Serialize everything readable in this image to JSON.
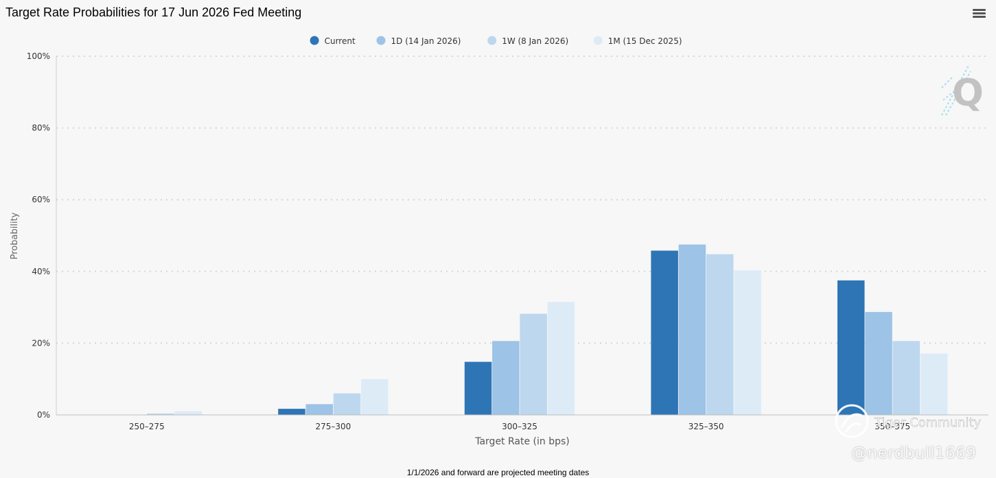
{
  "page": {
    "title": "Target Rate Probabilities for 17 Jun 2026 Fed Meeting",
    "footnote": "1/1/2026 and forward are projected meeting dates",
    "menu_icon": "hamburger-menu-icon"
  },
  "watermark": {
    "community": "Tiger Community",
    "handle": "@nerdbull1669",
    "logo_letter": "Q"
  },
  "chart_data": {
    "type": "bar",
    "title": "Target Rate Probabilities for 17 Jun 2026 Fed Meeting",
    "xlabel": "Target Rate (in bps)",
    "ylabel": "Probability",
    "categories": [
      "250-275",
      "275-300",
      "300-325",
      "325-350",
      "350-375"
    ],
    "ylim": [
      0,
      100
    ],
    "yticks": [
      0,
      20,
      40,
      60,
      80,
      100
    ],
    "ytick_suffix": "%",
    "grid": true,
    "legend_position": "top-center",
    "series": [
      {
        "name": "Current",
        "color": "#2e75b6",
        "values": [
          0.0,
          1.7,
          14.8,
          45.8,
          37.5
        ]
      },
      {
        "name": "1D (14 Jan 2026)",
        "color": "#9dc3e6",
        "values": [
          0.0,
          3.0,
          20.6,
          47.5,
          28.7
        ]
      },
      {
        "name": "1W (8 Jan 2026)",
        "color": "#bdd7ee",
        "values": [
          0.4,
          6.0,
          28.2,
          44.8,
          20.6
        ]
      },
      {
        "name": "1M (15 Dec 2025)",
        "color": "#ddebf7",
        "values": [
          1.0,
          10.0,
          31.5,
          40.3,
          17.1
        ]
      }
    ]
  }
}
